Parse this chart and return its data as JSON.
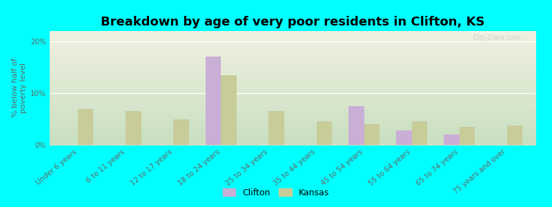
{
  "title": "Breakdown by age of very poor residents in Clifton, KS",
  "ylabel": "% below half of\npoverty level",
  "categories": [
    "Under 6 years",
    "6 to 11 years",
    "12 to 17 years",
    "18 to 24 years",
    "25 to 34 years",
    "35 to 44 years",
    "45 to 54 years",
    "55 to 64 years",
    "65 to 74 years",
    "75 years and over"
  ],
  "clifton_values": [
    null,
    null,
    null,
    17.0,
    null,
    null,
    7.5,
    2.8,
    2.0,
    null
  ],
  "kansas_values": [
    7.0,
    6.5,
    5.0,
    13.5,
    6.5,
    4.5,
    4.0,
    4.5,
    3.5,
    3.8
  ],
  "clifton_color": "#c9aed6",
  "kansas_color": "#c8cc99",
  "background_color": "#00ffff",
  "plot_bg_top": "#f0f0e0",
  "plot_bg_bottom": "#c8dfc0",
  "ylim": [
    0,
    22
  ],
  "yticks": [
    0,
    10,
    20
  ],
  "ytick_labels": [
    "0%",
    "10%",
    "20%"
  ],
  "bar_width": 0.32,
  "legend_clifton": "Clifton",
  "legend_kansas": "Kansas",
  "title_fontsize": 13,
  "axis_fontsize": 8,
  "tick_fontsize": 7.5
}
